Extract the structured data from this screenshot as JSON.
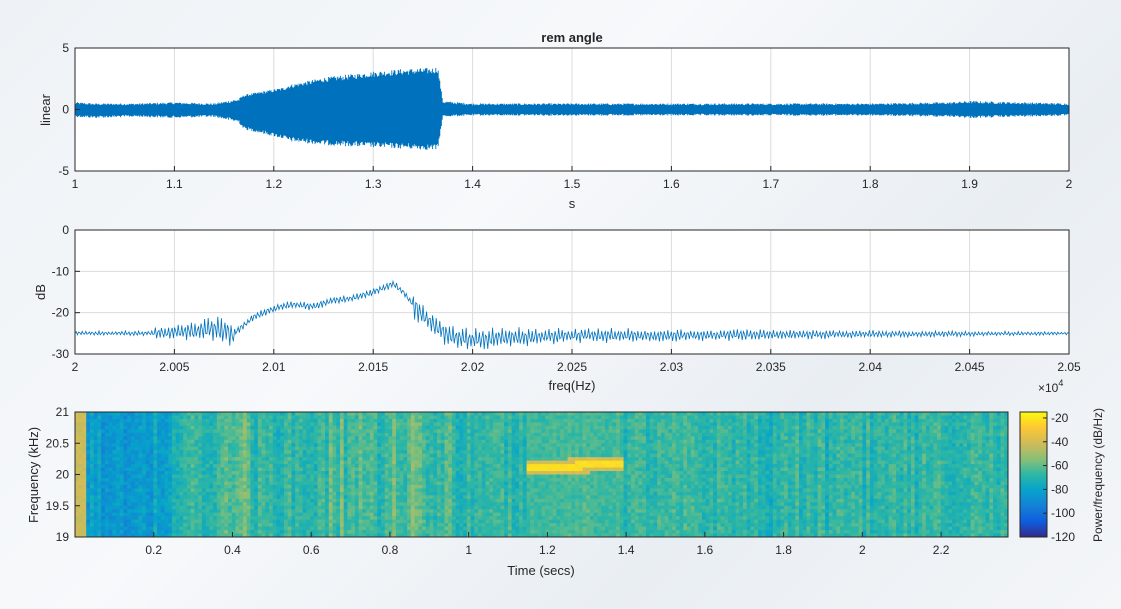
{
  "chart_data": [
    {
      "type": "line",
      "title": "rem angle",
      "xlabel": "s",
      "ylabel": "linear",
      "xlim": [
        1,
        2
      ],
      "ylim": [
        -5,
        5
      ],
      "xticks": [
        "1",
        "1.1",
        "1.2",
        "1.3",
        "1.4",
        "1.5",
        "1.6",
        "1.7",
        "1.8",
        "1.9",
        "2"
      ],
      "yticks": [
        "-5",
        "0",
        "5"
      ],
      "grid": true,
      "color": "#0072BD",
      "envelope": {
        "x": [
          1.0,
          1.02,
          1.06,
          1.1,
          1.14,
          1.165,
          1.17,
          1.19,
          1.21,
          1.215,
          1.25,
          1.3,
          1.33,
          1.36,
          1.365,
          1.37,
          1.4,
          1.45,
          1.5,
          1.6,
          1.7,
          1.8,
          1.88,
          1.9,
          1.95,
          2.0
        ],
        "upper": [
          0.6,
          0.5,
          0.5,
          0.6,
          0.5,
          0.9,
          1.2,
          1.5,
          1.8,
          2.0,
          2.6,
          3.1,
          3.3,
          3.4,
          3.5,
          0.7,
          0.5,
          0.5,
          0.5,
          0.5,
          0.5,
          0.5,
          0.6,
          0.7,
          0.6,
          0.5
        ],
        "lower": [
          -0.6,
          -0.7,
          -0.6,
          -0.7,
          -0.6,
          -1.1,
          -1.6,
          -2.0,
          -2.4,
          -2.6,
          -2.9,
          -3.1,
          -3.2,
          -3.3,
          -3.3,
          -0.6,
          -0.5,
          -0.5,
          -0.5,
          -0.5,
          -0.5,
          -0.5,
          -0.6,
          -0.7,
          -0.6,
          -0.5
        ]
      }
    },
    {
      "type": "line",
      "title": "",
      "xlabel": "freq(Hz)",
      "ylabel": "dB",
      "xlim": [
        20000,
        20500
      ],
      "ylim": [
        -30,
        0
      ],
      "xticks": [
        "2",
        "2.005",
        "2.01",
        "2.015",
        "2.02",
        "2.025",
        "2.03",
        "2.035",
        "2.04",
        "2.045",
        "2.05"
      ],
      "yticks": [
        "0",
        "-10",
        "-20",
        "-30"
      ],
      "exponent_label": "×10",
      "exponent_power": "4",
      "grid": true,
      "color": "#0072BD",
      "curve": {
        "x": [
          20000,
          20040,
          20060,
          20070,
          20080,
          20090,
          20100,
          20110,
          20120,
          20130,
          20140,
          20150,
          20155,
          20160,
          20165,
          20170,
          20180,
          20190,
          20200,
          20220,
          20250,
          20300,
          20350,
          20400,
          20450,
          20500
        ],
        "y": [
          -25,
          -25,
          -24.5,
          -24,
          -25,
          -21,
          -19,
          -18,
          -18.5,
          -17,
          -16.5,
          -15,
          -14,
          -13,
          -15,
          -18,
          -23,
          -26,
          -26.5,
          -26,
          -25.5,
          -25.5,
          -25.3,
          -25.2,
          -25.1,
          -25
        ]
      }
    },
    {
      "type": "heatmap",
      "title": "",
      "xlabel": "Time (secs)",
      "ylabel": "Frequency (kHz)",
      "xlim": [
        0,
        2.37
      ],
      "ylim": [
        19,
        21
      ],
      "xticks": [
        "0.2",
        "0.4",
        "0.6",
        "0.8",
        "1",
        "1.2",
        "1.4",
        "1.6",
        "1.8",
        "2",
        "2.2"
      ],
      "yticks": [
        "21",
        "20.5",
        "20",
        "19.5",
        "19"
      ],
      "colorbar": {
        "label": "Power/frequency (dB/Hz)",
        "ticks": [
          "-20",
          "-40",
          "-60",
          "-80",
          "-100",
          "-120"
        ],
        "clim": [
          -120,
          -15
        ],
        "colormap": "parula"
      },
      "chirp": {
        "t_start": 1.17,
        "t_end": 1.37,
        "f_start_khz": 20.1,
        "f_end_khz": 20.17,
        "level_db": -22
      },
      "background_level_db": -68
    }
  ]
}
